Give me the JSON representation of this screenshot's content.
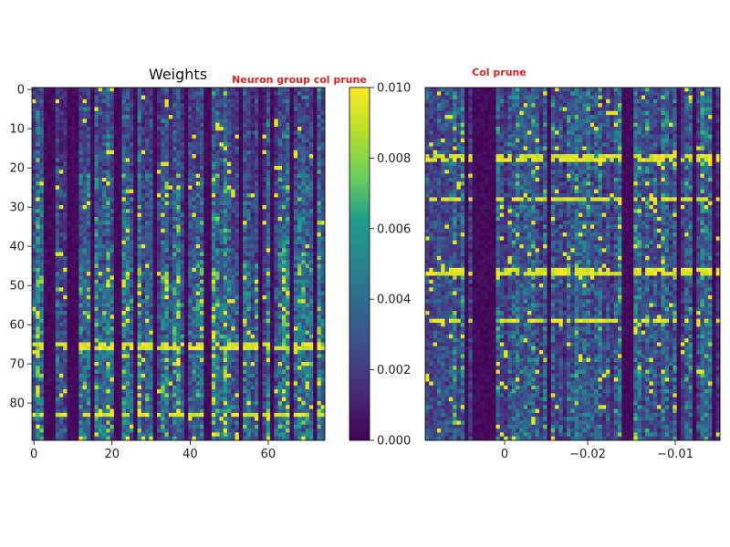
{
  "colors": {
    "colormap": "viridis",
    "annotation": "#e02020",
    "viridis_stops": [
      "#440154",
      "#482777",
      "#3f4a8a",
      "#31678e",
      "#26838f",
      "#1f9d8a",
      "#6cce5a",
      "#b6de2b",
      "#fee825"
    ]
  },
  "chart_data": [
    {
      "type": "heatmap",
      "title": "Weights",
      "annotation": "Neuron group col prune",
      "rows": 90,
      "cols": 75,
      "xlim": [
        0,
        75
      ],
      "ylim": [
        90,
        0
      ],
      "xticks": [
        0,
        20,
        40,
        60
      ],
      "yticks": [
        0,
        10,
        20,
        30,
        40,
        50,
        60,
        70,
        80
      ],
      "colorbar": {
        "vmin": 0.0,
        "vmax": 0.01,
        "ticks": [
          "0.000",
          "0.002",
          "0.004",
          "0.006",
          "0.008",
          "0.010"
        ]
      },
      "bands": [
        {
          "rows": [
            0,
            21
          ],
          "level": 0.003
        },
        {
          "rows": [
            22,
            44
          ],
          "level": 0.004
        },
        {
          "rows": [
            45,
            89
          ],
          "level": 0.005
        }
      ],
      "zero_columns": [
        3,
        4,
        5,
        9,
        10,
        11,
        15,
        21,
        22,
        26,
        31,
        39,
        44,
        45,
        53,
        58,
        61,
        66,
        72
      ],
      "bright_rows": [
        65,
        66,
        83
      ],
      "seed": 7
    },
    {
      "type": "heatmap",
      "title": "",
      "annotation": "Col prune",
      "rows": 90,
      "cols": 75,
      "xticks": [
        "0",
        "−0.02",
        "−0.01"
      ],
      "zero_columns": [
        10,
        12,
        13,
        14,
        15,
        16,
        17,
        31,
        50,
        51,
        52,
        64,
        68,
        73
      ],
      "bright_rows": [
        17,
        18,
        28,
        46,
        47,
        59
      ],
      "level": 0.004,
      "seed": 21
    }
  ]
}
